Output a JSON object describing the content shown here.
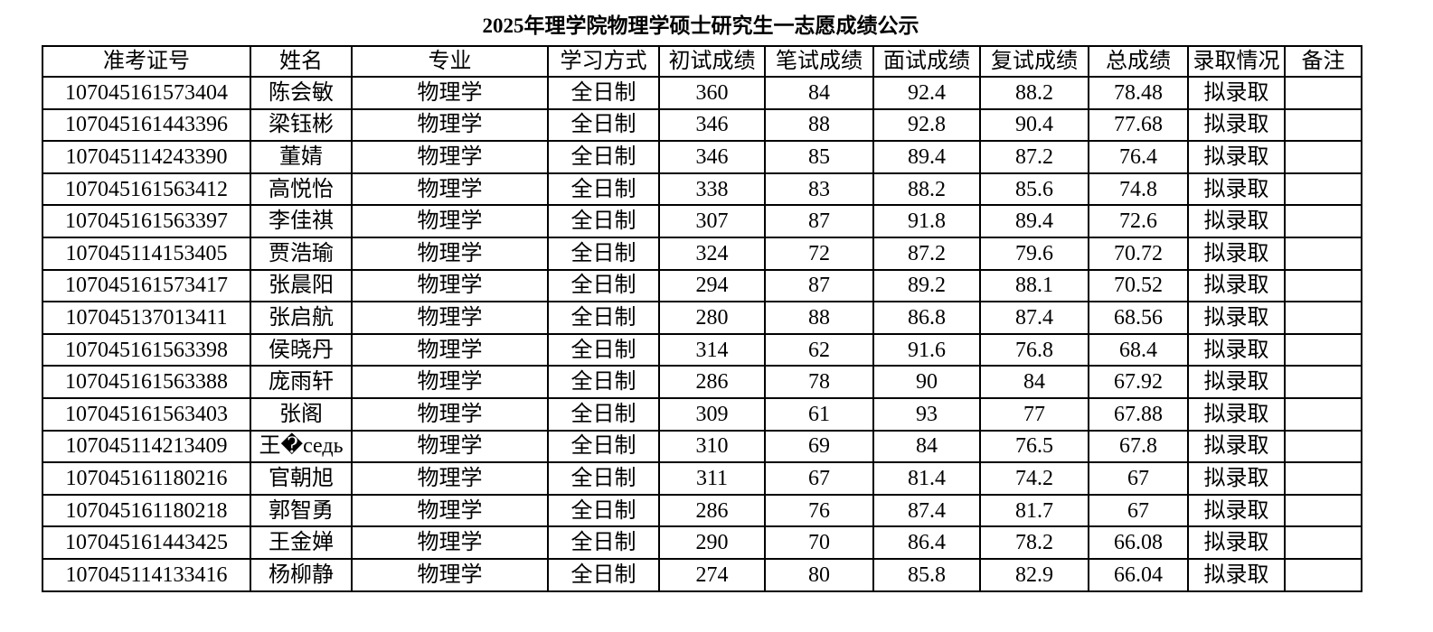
{
  "title": "2025年理学院物理学硕士研究生一志愿成绩公示",
  "columns": [
    "准考证号",
    "姓名",
    "专业",
    "学习方式",
    "初试成绩",
    "笔试成绩",
    "面试成绩",
    "复试成绩",
    "总成绩",
    "录取情况",
    "备注"
  ],
  "rows": [
    [
      "107045161573404",
      "陈会敏",
      "物理学",
      "全日制",
      "360",
      "84",
      "92.4",
      "88.2",
      "78.48",
      "拟录取",
      ""
    ],
    [
      "107045161443396",
      "梁钰彬",
      "物理学",
      "全日制",
      "346",
      "88",
      "92.8",
      "90.4",
      "77.68",
      "拟录取",
      ""
    ],
    [
      "107045114243390",
      "董婧",
      "物理学",
      "全日制",
      "346",
      "85",
      "89.4",
      "87.2",
      "76.4",
      "拟录取",
      ""
    ],
    [
      "107045161563412",
      "高悦怡",
      "物理学",
      "全日制",
      "338",
      "83",
      "88.2",
      "85.6",
      "74.8",
      "拟录取",
      ""
    ],
    [
      "107045161563397",
      "李佳祺",
      "物理学",
      "全日制",
      "307",
      "87",
      "91.8",
      "89.4",
      "72.6",
      "拟录取",
      ""
    ],
    [
      "107045114153405",
      "贾浩瑜",
      "物理学",
      "全日制",
      "324",
      "72",
      "87.2",
      "79.6",
      "70.72",
      "拟录取",
      ""
    ],
    [
      "107045161573417",
      "张晨阳",
      "物理学",
      "全日制",
      "294",
      "87",
      "89.2",
      "88.1",
      "70.52",
      "拟录取",
      ""
    ],
    [
      "107045137013411",
      "张启航",
      "物理学",
      "全日制",
      "280",
      "88",
      "86.8",
      "87.4",
      "68.56",
      "拟录取",
      ""
    ],
    [
      "107045161563398",
      "侯晓丹",
      "物理学",
      "全日制",
      "314",
      "62",
      "91.6",
      "76.8",
      "68.4",
      "拟录取",
      ""
    ],
    [
      "107045161563388",
      "庞雨轩",
      "物理学",
      "全日制",
      "286",
      "78",
      "90",
      "84",
      "67.92",
      "拟录取",
      ""
    ],
    [
      "107045161563403",
      "张阁",
      "物理学",
      "全日制",
      "309",
      "61",
      "93",
      "77",
      "67.88",
      "拟录取",
      ""
    ],
    [
      "107045114213409",
      "王�седь",
      "物理学",
      "全日制",
      "310",
      "69",
      "84",
      "76.5",
      "67.8",
      "拟录取",
      ""
    ],
    [
      "107045161180216",
      "官朝旭",
      "物理学",
      "全日制",
      "311",
      "67",
      "81.4",
      "74.2",
      "67",
      "拟录取",
      ""
    ],
    [
      "107045161180218",
      "郭智勇",
      "物理学",
      "全日制",
      "286",
      "76",
      "87.4",
      "81.7",
      "67",
      "拟录取",
      ""
    ],
    [
      "107045161443425",
      "王金婵",
      "物理学",
      "全日制",
      "290",
      "70",
      "86.4",
      "78.2",
      "66.08",
      "拟录取",
      ""
    ],
    [
      "107045114133416",
      "杨柳静",
      "物理学",
      "全日制",
      "274",
      "80",
      "85.8",
      "82.9",
      "66.04",
      "拟录取",
      ""
    ]
  ]
}
